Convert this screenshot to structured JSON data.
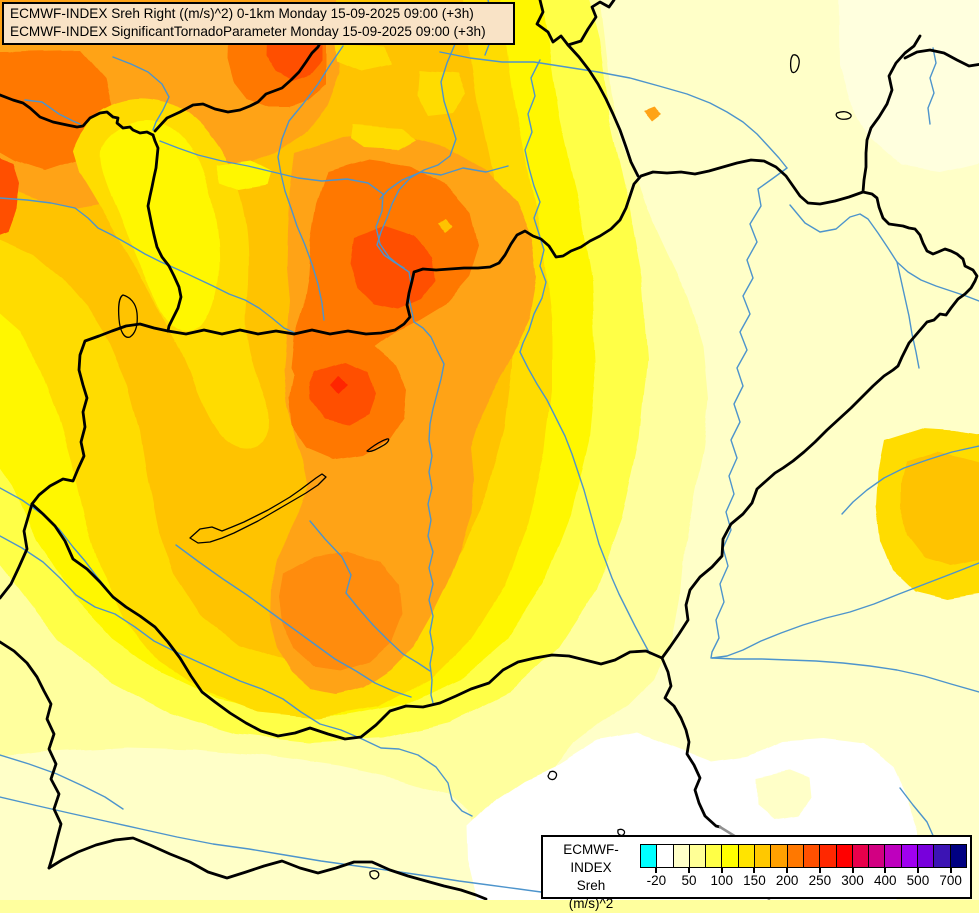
{
  "header": {
    "line1": "ECMWF-INDEX Sreh Right ((m/s)^2) 0-1km Monday 15-09-2025 09:00 (+3h)",
    "line2": "ECMWF-INDEX SignificantTornadoParameter Monday 15-09-2025 09:00 (+3h)"
  },
  "legend": {
    "title_lines": [
      "ECMWF-INDEX",
      "Sreh",
      "(m/s)^2"
    ],
    "swatches": [
      "#00FFFF",
      "#FFFFFF",
      "#FFFFC8",
      "#FFFF96",
      "#FFFF46",
      "#FFFF00",
      "#FFE400",
      "#FFC800",
      "#FFA000",
      "#FF7800",
      "#FF5000",
      "#FF2800",
      "#FF0000",
      "#E8004B",
      "#D20082",
      "#BE00BE",
      "#A000F0",
      "#7800DC",
      "#3C14B4",
      "#000082"
    ],
    "ticks": [
      {
        "label": "-20",
        "after_swatch": 1
      },
      {
        "label": "50",
        "after_swatch": 3
      },
      {
        "label": "100",
        "after_swatch": 5
      },
      {
        "label": "150",
        "after_swatch": 7
      },
      {
        "label": "200",
        "after_swatch": 9
      },
      {
        "label": "250",
        "after_swatch": 11
      },
      {
        "label": "300",
        "after_swatch": 13
      },
      {
        "label": "400",
        "after_swatch": 15
      },
      {
        "label": "500",
        "after_swatch": 17
      },
      {
        "label": "700",
        "after_swatch": 19
      }
    ]
  },
  "map": {
    "border_color": "#000000",
    "river_color": "#4D94CC",
    "band_colors": {
      "white": "#FFFFFF",
      "palest": "#FFFFDE",
      "cream": "#FFFFC8",
      "pale_yellow": "#FFFF9E",
      "yellow_light": "#FFFF46",
      "yellow": "#FFF700",
      "gold": "#FFDC00",
      "amber": "#FFC300",
      "orange": "#FFA319",
      "orange_deep": "#FF8C0A",
      "dark_orange": "#FF7800",
      "red_orange": "#FF5000",
      "red": "#FF2800"
    }
  }
}
